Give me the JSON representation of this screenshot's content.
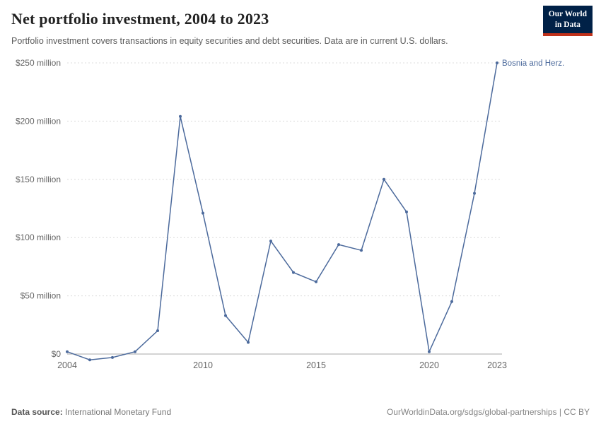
{
  "header": {
    "title": "Net portfolio investment, 2004 to 2023",
    "subtitle": "Portfolio investment covers transactions in equity securities and debt securities. Data are in current U.S. dollars.",
    "logo": {
      "line1": "Our World",
      "line2": "in Data",
      "bg": "#002147",
      "accent": "#c0311a"
    }
  },
  "chart_data": {
    "type": "line",
    "title": "Net portfolio investment, 2004 to 2023",
    "unit": "current US$ (millions)",
    "grid": "dashed horizontal gridlines",
    "legend_position": "end-of-line label",
    "x": [
      2004,
      2005,
      2006,
      2007,
      2008,
      2009,
      2010,
      2011,
      2012,
      2013,
      2014,
      2015,
      2016,
      2017,
      2018,
      2019,
      2020,
      2021,
      2022,
      2023
    ],
    "series": [
      {
        "name": "Bosnia and Herz.",
        "color": "#4c6a9c",
        "values": [
          2,
          -5,
          -3,
          2,
          20,
          204,
          121,
          33,
          10,
          97,
          70,
          62,
          94,
          89,
          150,
          122,
          2,
          45,
          138,
          250
        ]
      }
    ],
    "xticks": [
      2004,
      2010,
      2015,
      2020,
      2023
    ],
    "yticks": [
      {
        "value": 0,
        "label": "$0"
      },
      {
        "value": 50,
        "label": "$50 million"
      },
      {
        "value": 100,
        "label": "$100 million"
      },
      {
        "value": 150,
        "label": "$150 million"
      },
      {
        "value": 200,
        "label": "$200 million"
      },
      {
        "value": 250,
        "label": "$250 million"
      }
    ],
    "ylim": [
      -10,
      250
    ],
    "xlabel": "",
    "ylabel": ""
  },
  "footer": {
    "source_label": "Data source:",
    "source": "International Monetary Fund",
    "link": "OurWorldinData.org/sdgs/global-partnerships | CC BY"
  }
}
